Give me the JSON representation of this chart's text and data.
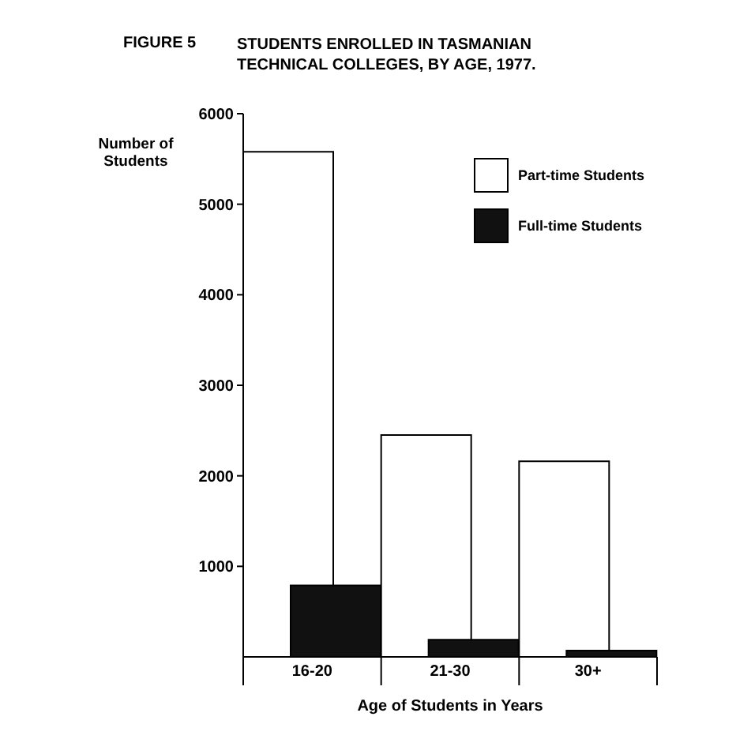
{
  "chart_data": {
    "type": "bar",
    "title": "STUDENTS ENROLLED IN TASMANIAN TECHNICAL COLLEGES, BY AGE, 1977.",
    "annotations": [
      "FIGURE 5"
    ],
    "xlabel": "Age of Students in Years",
    "ylabel": "Number of Students",
    "categories": [
      "16-20",
      "21-30",
      "30+"
    ],
    "series": [
      {
        "name": "Part-time Students",
        "color": "#ffffff",
        "values": [
          5580,
          2450,
          2160
        ]
      },
      {
        "name": "Full-time Students",
        "color": "#111111",
        "values": [
          790,
          190,
          70
        ]
      }
    ],
    "ylim": [
      0,
      6000
    ],
    "yticks": [
      1000,
      2000,
      3000,
      4000,
      5000,
      6000
    ],
    "grid": false,
    "legend": "top right"
  }
}
